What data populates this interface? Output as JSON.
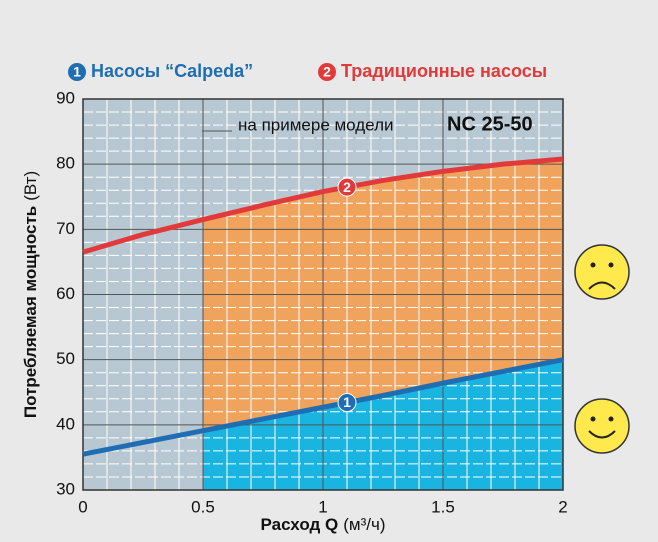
{
  "chart_data": {
    "type": "line",
    "x_label": "Расход Q",
    "x_unit": "(м³/ч)",
    "y_label": "Потребляемая мощность",
    "y_unit": "(Вт)",
    "annotation": "на примере модели",
    "annotation_model": "NC 25-50",
    "x": [
      0,
      0.25,
      0.5,
      0.75,
      1,
      1.25,
      1.5,
      1.75,
      2
    ],
    "series": [
      {
        "name": "Насосы “Calpeda”",
        "marker_label": "1",
        "color": "#1f6db3",
        "values": [
          35.5,
          37.3,
          39.1,
          40.9,
          42.7,
          44.5,
          46.4,
          48.2,
          50
        ]
      },
      {
        "name": "Традиционные насосы",
        "marker_label": "2",
        "color": "#e23a3a",
        "values": [
          66.5,
          69.2,
          71.5,
          73.7,
          75.8,
          77.5,
          78.9,
          80.0,
          80.8
        ]
      }
    ],
    "marker_x": 1.1,
    "shade_from": 0.5,
    "xlim": [
      0,
      2
    ],
    "xticks": [
      0,
      0.5,
      1,
      1.5,
      2
    ],
    "ylim": [
      30,
      90
    ],
    "yticks": [
      30,
      40,
      50,
      60,
      70,
      80,
      90
    ],
    "grid": true
  }
}
